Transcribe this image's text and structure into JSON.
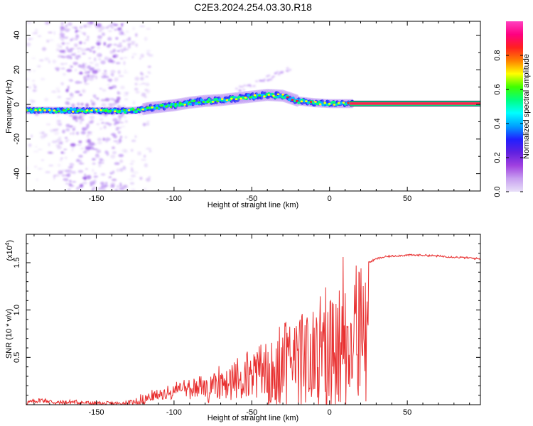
{
  "title": "C2E3.2024.254.03.30.R18",
  "chart_data": [
    {
      "type": "heatmap",
      "xlabel": "Height of straight line (km)",
      "ylabel": "Frequency (Hz)",
      "xlim": [
        -195,
        97
      ],
      "ylim": [
        -50,
        48
      ],
      "xticks": [
        -150,
        -100,
        -50,
        0,
        50
      ],
      "xtick_labels": [
        "-150",
        "-100",
        "-50",
        "0",
        "50"
      ],
      "yticks": [
        -40,
        -20,
        0,
        20,
        40
      ],
      "ytick_labels": [
        "-40",
        "-20",
        "0",
        "20",
        "40"
      ],
      "colorbar": {
        "label": "Normalized spectral amplitude",
        "range": [
          0,
          1
        ],
        "ticks": [
          0.0,
          0.2,
          0.4,
          0.6,
          0.8
        ],
        "tick_labels": [
          "0.0",
          "0.2",
          "0.4",
          "0.6",
          "0.8"
        ],
        "colors": [
          "#e8e0f8",
          "#c8a0f0",
          "#a040e0",
          "#6020e0",
          "#2020ff",
          "#00a0ff",
          "#00ffff",
          "#00ff80",
          "#40ff00",
          "#ffff00",
          "#ff8000",
          "#ff2020",
          "#ff0080",
          "#ff40c0"
        ]
      },
      "ridge": [
        {
          "x": -195,
          "f": -3.5
        },
        {
          "x": -180,
          "f": -3.5
        },
        {
          "x": -160,
          "f": -3.5
        },
        {
          "x": -140,
          "f": -3.8
        },
        {
          "x": -125,
          "f": -3.5
        },
        {
          "x": -115,
          "f": -2
        },
        {
          "x": -100,
          "f": -0.5
        },
        {
          "x": -90,
          "f": 1
        },
        {
          "x": -80,
          "f": 2
        },
        {
          "x": -70,
          "f": 2.5
        },
        {
          "x": -60,
          "f": 3.5
        },
        {
          "x": -50,
          "f": 4.5
        },
        {
          "x": -40,
          "f": 5.5
        },
        {
          "x": -30,
          "f": 5
        },
        {
          "x": -20,
          "f": 2
        },
        {
          "x": -10,
          "f": 1
        },
        {
          "x": 0,
          "f": 0.5
        },
        {
          "x": 10,
          "f": 0.5
        },
        {
          "x": 20,
          "f": 0.5
        },
        {
          "x": 97,
          "f": 0.5
        }
      ]
    },
    {
      "type": "line",
      "xlabel": "Height of straight line (km)",
      "ylabel": "SNR (10 * v/v)",
      "y_multiplier": "(x10",
      "y_multiplier_exp": "4",
      "y_multiplier_close": ")",
      "xlim": [
        -195,
        97
      ],
      "ylim": [
        0,
        1.8
      ],
      "xticks": [
        -150,
        -100,
        -50,
        0,
        50
      ],
      "xtick_labels": [
        "-150",
        "-100",
        "-50",
        "0",
        "50"
      ],
      "yticks": [
        0.5,
        1.0,
        1.5
      ],
      "ytick_labels": [
        "0.5",
        "1.0",
        "1.5"
      ],
      "line_color": "#e83030",
      "series": [
        {
          "name": "SNR",
          "points": [
            [
              -195,
              0.02
            ],
            [
              -185,
              0.05
            ],
            [
              -175,
              0.02
            ],
            [
              -165,
              0.03
            ],
            [
              -150,
              0.01
            ],
            [
              -135,
              0.01
            ],
            [
              -130,
              0.02
            ],
            [
              -120,
              0.04
            ],
            [
              -115,
              0.08
            ],
            [
              -110,
              0.1
            ],
            [
              -105,
              0.13
            ],
            [
              -100,
              0.15
            ],
            [
              -95,
              0.18
            ],
            [
              -90,
              0.22
            ],
            [
              -85,
              0.25
            ],
            [
              -80,
              0.28
            ],
            [
              -75,
              0.32
            ],
            [
              -70,
              0.35
            ],
            [
              -65,
              0.38
            ],
            [
              -60,
              0.42
            ],
            [
              -55,
              0.48
            ],
            [
              -50,
              0.52
            ],
            [
              -45,
              0.58
            ],
            [
              -40,
              0.65
            ],
            [
              -35,
              0.72
            ],
            [
              -30,
              0.8
            ],
            [
              -25,
              0.9
            ],
            [
              -20,
              0.95
            ],
            [
              -15,
              1.02
            ],
            [
              -10,
              1.1
            ],
            [
              -5,
              1.15
            ],
            [
              0,
              1.2
            ],
            [
              5,
              1.3
            ],
            [
              10,
              1.38
            ],
            [
              15,
              1.42
            ],
            [
              20,
              1.45
            ],
            [
              25,
              1.5
            ],
            [
              30,
              1.54
            ],
            [
              35,
              1.56
            ],
            [
              40,
              1.57
            ],
            [
              50,
              1.58
            ],
            [
              60,
              1.58
            ],
            [
              70,
              1.57
            ],
            [
              80,
              1.56
            ],
            [
              90,
              1.55
            ],
            [
              97,
              1.54
            ]
          ]
        }
      ]
    }
  ]
}
